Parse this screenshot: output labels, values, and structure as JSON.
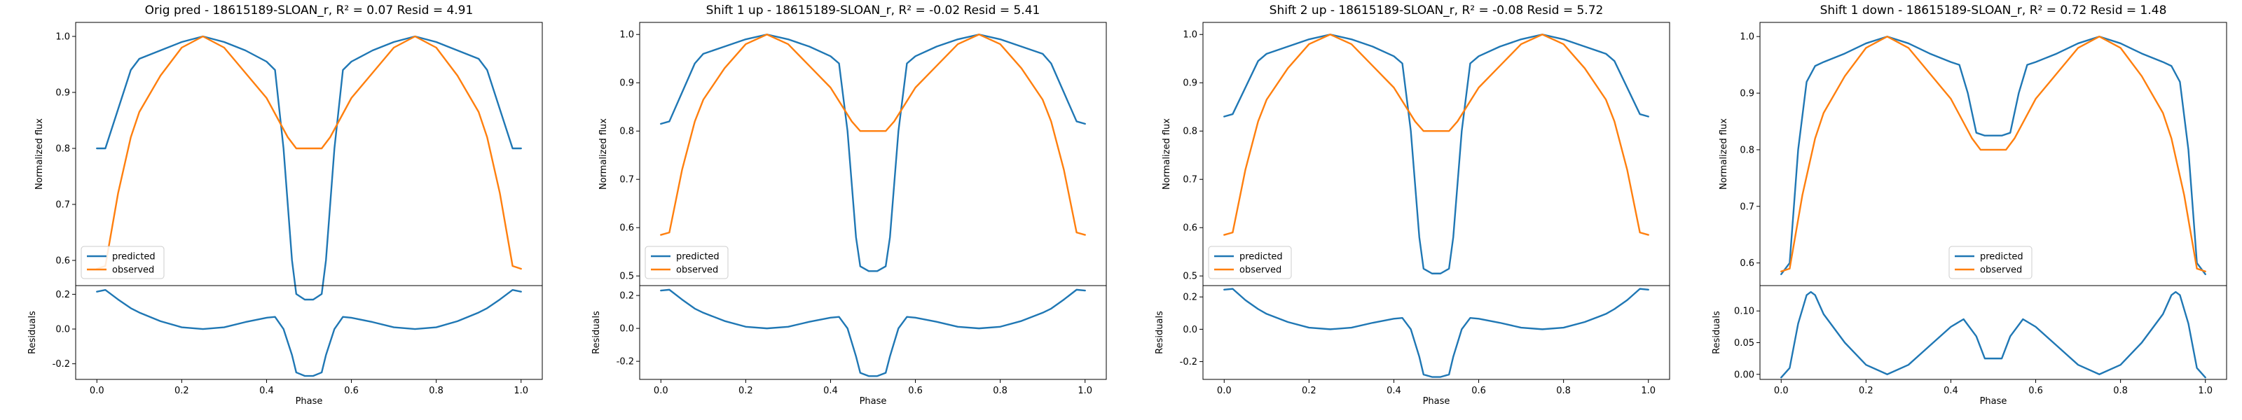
{
  "colors": {
    "predicted": "#1f77b4",
    "observed": "#ff7f0e"
  },
  "legend": {
    "placement": "lower-left/center",
    "predicted_label": "predicted",
    "observed_label": "observed"
  },
  "chart_data": [
    {
      "type": "line",
      "title": "Orig pred - 18615189-SLOAN_r, R² = 0.07 Resid = 4.91",
      "flux": {
        "ylabel": "Normalized flux",
        "ylim": [
          0.555,
          1.025
        ],
        "yticks": [
          0.6,
          0.7,
          0.8,
          0.9,
          1.0
        ],
        "series": [
          {
            "name": "predicted",
            "x": [
              0,
              0.02,
              0.05,
              0.08,
              0.1,
              0.15,
              0.2,
              0.25,
              0.3,
              0.35,
              0.4,
              0.42,
              0.44,
              0.46,
              0.47,
              0.49,
              0.5,
              0.51,
              0.53,
              0.54,
              0.56,
              0.58,
              0.6,
              0.65,
              0.7,
              0.75,
              0.8,
              0.85,
              0.9,
              0.92,
              0.95,
              0.98,
              1.0
            ],
            "y": [
              0.8,
              0.8,
              0.87,
              0.94,
              0.96,
              0.975,
              0.99,
              1.0,
              0.99,
              0.975,
              0.955,
              0.94,
              0.8,
              0.6,
              0.54,
              0.53,
              0.53,
              0.53,
              0.54,
              0.6,
              0.8,
              0.94,
              0.955,
              0.975,
              0.99,
              1.0,
              0.99,
              0.975,
              0.96,
              0.94,
              0.87,
              0.8,
              0.8
            ]
          },
          {
            "name": "observed",
            "x": [
              0,
              0.02,
              0.05,
              0.08,
              0.1,
              0.15,
              0.2,
              0.25,
              0.3,
              0.35,
              0.4,
              0.45,
              0.47,
              0.5,
              0.53,
              0.55,
              0.6,
              0.65,
              0.7,
              0.75,
              0.8,
              0.85,
              0.9,
              0.92,
              0.95,
              0.98,
              1.0
            ],
            "y": [
              0.585,
              0.59,
              0.72,
              0.82,
              0.865,
              0.93,
              0.98,
              1.0,
              0.98,
              0.935,
              0.89,
              0.82,
              0.8,
              0.8,
              0.8,
              0.82,
              0.89,
              0.935,
              0.98,
              1.0,
              0.98,
              0.93,
              0.865,
              0.82,
              0.72,
              0.59,
              0.585
            ]
          }
        ]
      },
      "residuals": {
        "xlabel": "Phase",
        "ylabel": "Residuals",
        "ylim": [
          -0.29,
          0.25
        ],
        "yticks": [
          -0.2,
          0.0,
          0.2
        ],
        "xlim": [
          -0.05,
          1.05
        ],
        "xticks": [
          0.0,
          0.2,
          0.4,
          0.6,
          0.8,
          1.0
        ],
        "series": [
          {
            "name": "residual",
            "x": [
              0,
              0.02,
              0.05,
              0.08,
              0.1,
              0.15,
              0.2,
              0.25,
              0.3,
              0.35,
              0.4,
              0.42,
              0.44,
              0.46,
              0.47,
              0.49,
              0.5,
              0.51,
              0.53,
              0.54,
              0.56,
              0.58,
              0.6,
              0.65,
              0.7,
              0.75,
              0.8,
              0.85,
              0.9,
              0.92,
              0.95,
              0.98,
              1.0
            ],
            "y": [
              0.215,
              0.225,
              0.17,
              0.12,
              0.095,
              0.045,
              0.01,
              0.0,
              0.01,
              0.04,
              0.065,
              0.07,
              0.0,
              -0.15,
              -0.25,
              -0.27,
              -0.27,
              -0.27,
              -0.25,
              -0.15,
              0.0,
              0.07,
              0.065,
              0.04,
              0.01,
              0.0,
              0.01,
              0.045,
              0.095,
              0.12,
              0.17,
              0.225,
              0.215
            ]
          }
        ]
      }
    },
    {
      "type": "line",
      "title": "Shift 1 up - 18615189-SLOAN_r, R² = -0.02 Resid = 5.41",
      "flux": {
        "ylabel": "Normalized flux",
        "ylim": [
          0.48,
          1.025
        ],
        "yticks": [
          0.5,
          0.6,
          0.7,
          0.8,
          0.9,
          1.0
        ],
        "series": [
          {
            "name": "predicted",
            "x": [
              0,
              0.02,
              0.05,
              0.08,
              0.1,
              0.15,
              0.2,
              0.25,
              0.3,
              0.35,
              0.4,
              0.42,
              0.44,
              0.46,
              0.47,
              0.49,
              0.5,
              0.51,
              0.53,
              0.54,
              0.56,
              0.58,
              0.6,
              0.65,
              0.7,
              0.75,
              0.8,
              0.85,
              0.9,
              0.92,
              0.95,
              0.98,
              1.0
            ],
            "y": [
              0.815,
              0.82,
              0.88,
              0.94,
              0.96,
              0.975,
              0.99,
              1.0,
              0.99,
              0.975,
              0.955,
              0.94,
              0.8,
              0.58,
              0.52,
              0.51,
              0.51,
              0.51,
              0.52,
              0.58,
              0.8,
              0.94,
              0.955,
              0.975,
              0.99,
              1.0,
              0.99,
              0.975,
              0.96,
              0.94,
              0.88,
              0.82,
              0.815
            ]
          },
          {
            "name": "observed",
            "x": [
              0,
              0.02,
              0.05,
              0.08,
              0.1,
              0.15,
              0.2,
              0.25,
              0.3,
              0.35,
              0.4,
              0.45,
              0.47,
              0.5,
              0.53,
              0.55,
              0.6,
              0.65,
              0.7,
              0.75,
              0.8,
              0.85,
              0.9,
              0.92,
              0.95,
              0.98,
              1.0
            ],
            "y": [
              0.585,
              0.59,
              0.72,
              0.82,
              0.865,
              0.93,
              0.98,
              1.0,
              0.98,
              0.935,
              0.89,
              0.82,
              0.8,
              0.8,
              0.8,
              0.82,
              0.89,
              0.935,
              0.98,
              1.0,
              0.98,
              0.93,
              0.865,
              0.82,
              0.72,
              0.59,
              0.585
            ]
          }
        ]
      },
      "residuals": {
        "xlabel": "Phase",
        "ylabel": "Residuals",
        "ylim": [
          -0.31,
          0.26
        ],
        "yticks": [
          -0.2,
          0.0,
          0.2
        ],
        "xlim": [
          -0.05,
          1.05
        ],
        "xticks": [
          0.0,
          0.2,
          0.4,
          0.6,
          0.8,
          1.0
        ],
        "series": [
          {
            "name": "residual",
            "x": [
              0,
              0.02,
              0.05,
              0.08,
              0.1,
              0.15,
              0.2,
              0.25,
              0.3,
              0.35,
              0.4,
              0.42,
              0.44,
              0.46,
              0.47,
              0.49,
              0.5,
              0.51,
              0.53,
              0.54,
              0.56,
              0.58,
              0.6,
              0.65,
              0.7,
              0.75,
              0.8,
              0.85,
              0.9,
              0.92,
              0.95,
              0.98,
              1.0
            ],
            "y": [
              0.23,
              0.235,
              0.175,
              0.12,
              0.095,
              0.045,
              0.01,
              0.0,
              0.01,
              0.04,
              0.065,
              0.07,
              0.0,
              -0.17,
              -0.27,
              -0.29,
              -0.29,
              -0.29,
              -0.27,
              -0.17,
              0.0,
              0.07,
              0.065,
              0.04,
              0.01,
              0.0,
              0.01,
              0.045,
              0.095,
              0.12,
              0.175,
              0.235,
              0.23
            ]
          }
        ]
      }
    },
    {
      "type": "line",
      "title": "Shift 2 up - 18615189-SLOAN_r, R² = -0.08 Resid = 5.72",
      "flux": {
        "ylabel": "Normalized flux",
        "ylim": [
          0.48,
          1.025
        ],
        "yticks": [
          0.5,
          0.6,
          0.7,
          0.8,
          0.9,
          1.0
        ],
        "series": [
          {
            "name": "predicted",
            "x": [
              0,
              0.02,
              0.05,
              0.08,
              0.1,
              0.15,
              0.2,
              0.25,
              0.3,
              0.35,
              0.4,
              0.42,
              0.44,
              0.46,
              0.47,
              0.49,
              0.5,
              0.51,
              0.53,
              0.54,
              0.56,
              0.58,
              0.6,
              0.65,
              0.7,
              0.75,
              0.8,
              0.85,
              0.9,
              0.92,
              0.95,
              0.98,
              1.0
            ],
            "y": [
              0.83,
              0.835,
              0.89,
              0.945,
              0.96,
              0.975,
              0.99,
              1.0,
              0.99,
              0.975,
              0.955,
              0.94,
              0.8,
              0.58,
              0.515,
              0.505,
              0.505,
              0.505,
              0.515,
              0.58,
              0.8,
              0.94,
              0.955,
              0.975,
              0.99,
              1.0,
              0.99,
              0.975,
              0.96,
              0.945,
              0.89,
              0.835,
              0.83
            ]
          },
          {
            "name": "observed",
            "x": [
              0,
              0.02,
              0.05,
              0.08,
              0.1,
              0.15,
              0.2,
              0.25,
              0.3,
              0.35,
              0.4,
              0.45,
              0.47,
              0.5,
              0.53,
              0.55,
              0.6,
              0.65,
              0.7,
              0.75,
              0.8,
              0.85,
              0.9,
              0.92,
              0.95,
              0.98,
              1.0
            ],
            "y": [
              0.585,
              0.59,
              0.72,
              0.82,
              0.865,
              0.93,
              0.98,
              1.0,
              0.98,
              0.935,
              0.89,
              0.82,
              0.8,
              0.8,
              0.8,
              0.82,
              0.89,
              0.935,
              0.98,
              1.0,
              0.98,
              0.93,
              0.865,
              0.82,
              0.72,
              0.59,
              0.585
            ]
          }
        ]
      },
      "residuals": {
        "xlabel": "Phase",
        "ylabel": "Residuals",
        "ylim": [
          -0.31,
          0.27
        ],
        "yticks": [
          -0.2,
          0.0,
          0.2
        ],
        "xlim": [
          -0.05,
          1.05
        ],
        "xticks": [
          0.0,
          0.2,
          0.4,
          0.6,
          0.8,
          1.0
        ],
        "series": [
          {
            "name": "residual",
            "x": [
              0,
              0.02,
              0.05,
              0.08,
              0.1,
              0.15,
              0.2,
              0.25,
              0.3,
              0.35,
              0.4,
              0.42,
              0.44,
              0.46,
              0.47,
              0.49,
              0.5,
              0.51,
              0.53,
              0.54,
              0.56,
              0.58,
              0.6,
              0.65,
              0.7,
              0.75,
              0.8,
              0.85,
              0.9,
              0.92,
              0.95,
              0.98,
              1.0
            ],
            "y": [
              0.245,
              0.25,
              0.18,
              0.125,
              0.095,
              0.045,
              0.01,
              0.0,
              0.01,
              0.04,
              0.065,
              0.07,
              0.0,
              -0.17,
              -0.28,
              -0.295,
              -0.295,
              -0.295,
              -0.28,
              -0.17,
              0.0,
              0.07,
              0.065,
              0.04,
              0.01,
              0.0,
              0.01,
              0.045,
              0.095,
              0.125,
              0.18,
              0.25,
              0.245
            ]
          }
        ]
      }
    },
    {
      "type": "line",
      "title": "Shift 1 down - 18615189-SLOAN_r, R² = 0.72 Resid = 1.48",
      "flux": {
        "ylabel": "Normalized flux",
        "ylim": [
          0.56,
          1.025
        ],
        "yticks": [
          0.6,
          0.7,
          0.8,
          0.9,
          1.0
        ],
        "series": [
          {
            "name": "predicted",
            "x": [
              0,
              0.02,
              0.04,
              0.06,
              0.08,
              0.1,
              0.15,
              0.2,
              0.25,
              0.3,
              0.35,
              0.4,
              0.42,
              0.44,
              0.46,
              0.48,
              0.5,
              0.52,
              0.54,
              0.56,
              0.58,
              0.6,
              0.65,
              0.7,
              0.75,
              0.8,
              0.85,
              0.9,
              0.92,
              0.94,
              0.96,
              0.98,
              1.0
            ],
            "y": [
              0.58,
              0.6,
              0.8,
              0.92,
              0.948,
              0.955,
              0.97,
              0.988,
              1.0,
              0.988,
              0.97,
              0.955,
              0.95,
              0.9,
              0.83,
              0.825,
              0.825,
              0.825,
              0.83,
              0.9,
              0.95,
              0.955,
              0.97,
              0.988,
              1.0,
              0.988,
              0.97,
              0.955,
              0.948,
              0.92,
              0.8,
              0.6,
              0.58
            ]
          },
          {
            "name": "observed",
            "x": [
              0,
              0.02,
              0.05,
              0.08,
              0.1,
              0.15,
              0.2,
              0.25,
              0.3,
              0.35,
              0.4,
              0.45,
              0.47,
              0.5,
              0.53,
              0.55,
              0.6,
              0.65,
              0.7,
              0.75,
              0.8,
              0.85,
              0.9,
              0.92,
              0.95,
              0.98,
              1.0
            ],
            "y": [
              0.585,
              0.59,
              0.72,
              0.82,
              0.865,
              0.93,
              0.98,
              1.0,
              0.98,
              0.935,
              0.89,
              0.82,
              0.8,
              0.8,
              0.8,
              0.82,
              0.89,
              0.935,
              0.98,
              1.0,
              0.98,
              0.93,
              0.865,
              0.82,
              0.72,
              0.59,
              0.585
            ]
          }
        ]
      },
      "residuals": {
        "xlabel": "Phase",
        "ylabel": "Residuals",
        "ylim": [
          -0.008,
          0.14
        ],
        "yticks": [
          0.0,
          0.05,
          0.1
        ],
        "xlim": [
          -0.05,
          1.05
        ],
        "xticks": [
          0.0,
          0.2,
          0.4,
          0.6,
          0.8,
          1.0
        ],
        "series": [
          {
            "name": "residual",
            "x": [
              0,
              0.02,
              0.04,
              0.06,
              0.07,
              0.08,
              0.1,
              0.15,
              0.2,
              0.25,
              0.3,
              0.35,
              0.4,
              0.43,
              0.46,
              0.48,
              0.5,
              0.52,
              0.54,
              0.57,
              0.6,
              0.65,
              0.7,
              0.75,
              0.8,
              0.85,
              0.9,
              0.92,
              0.93,
              0.94,
              0.96,
              0.98,
              1.0
            ],
            "y": [
              -0.005,
              0.01,
              0.08,
              0.125,
              0.13,
              0.125,
              0.095,
              0.05,
              0.015,
              0.0,
              0.015,
              0.045,
              0.075,
              0.087,
              0.06,
              0.025,
              0.025,
              0.025,
              0.06,
              0.087,
              0.075,
              0.045,
              0.015,
              0.0,
              0.015,
              0.05,
              0.095,
              0.125,
              0.13,
              0.125,
              0.08,
              0.01,
              -0.005
            ]
          }
        ]
      }
    }
  ]
}
